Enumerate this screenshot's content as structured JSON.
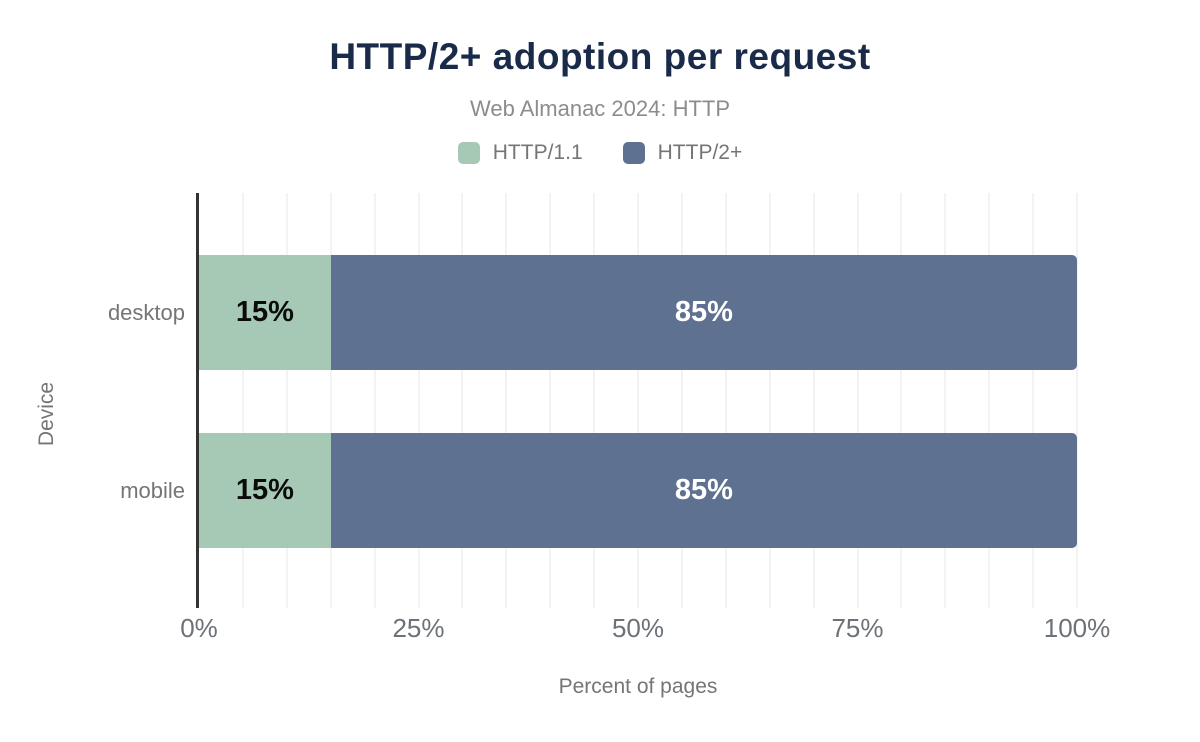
{
  "header": {
    "title": "HTTP/2+ adoption per request",
    "subtitle": "Web Almanac 2024: HTTP"
  },
  "legend": {
    "items": [
      {
        "label": "HTTP/1.1",
        "color": "#a6c9b6"
      },
      {
        "label": "HTTP/2+",
        "color": "#5f7190"
      }
    ]
  },
  "axes": {
    "x_title": "Percent of pages",
    "y_title": "Device",
    "x_ticks": [
      "0%",
      "25%",
      "50%",
      "75%",
      "100%"
    ]
  },
  "rows": [
    {
      "category": "desktop",
      "segments": [
        {
          "label": "15%",
          "value": 15,
          "series": "HTTP/1.1"
        },
        {
          "label": "85%",
          "value": 85,
          "series": "HTTP/2+"
        }
      ]
    },
    {
      "category": "mobile",
      "segments": [
        {
          "label": "15%",
          "value": 15,
          "series": "HTTP/1.1"
        },
        {
          "label": "85%",
          "value": 85,
          "series": "HTTP/2+"
        }
      ]
    }
  ],
  "chart_data": {
    "type": "bar",
    "stacked": true,
    "orientation": "horizontal",
    "title": "HTTP/2+ adoption per request",
    "subtitle": "Web Almanac 2024: HTTP",
    "categories": [
      "desktop",
      "mobile"
    ],
    "series": [
      {
        "name": "HTTP/1.1",
        "color": "#a6c9b6",
        "values": [
          15,
          15
        ]
      },
      {
        "name": "HTTP/2+",
        "color": "#5f7190",
        "values": [
          85,
          85
        ]
      }
    ],
    "xlabel": "Percent of pages",
    "ylabel": "Device",
    "xlim": [
      0,
      100
    ],
    "xtick_labels": [
      "0%",
      "25%",
      "50%",
      "75%",
      "100%"
    ],
    "grid": {
      "vertical": true,
      "interval_pct": 5
    },
    "legend_position": "top",
    "colors": {
      "title": "#1a2b49",
      "muted_text": "#757575",
      "tick_text": "#6d7278",
      "axis_line": "#333333",
      "gridline": "#f3f3f3",
      "background": "#ffffff"
    }
  }
}
